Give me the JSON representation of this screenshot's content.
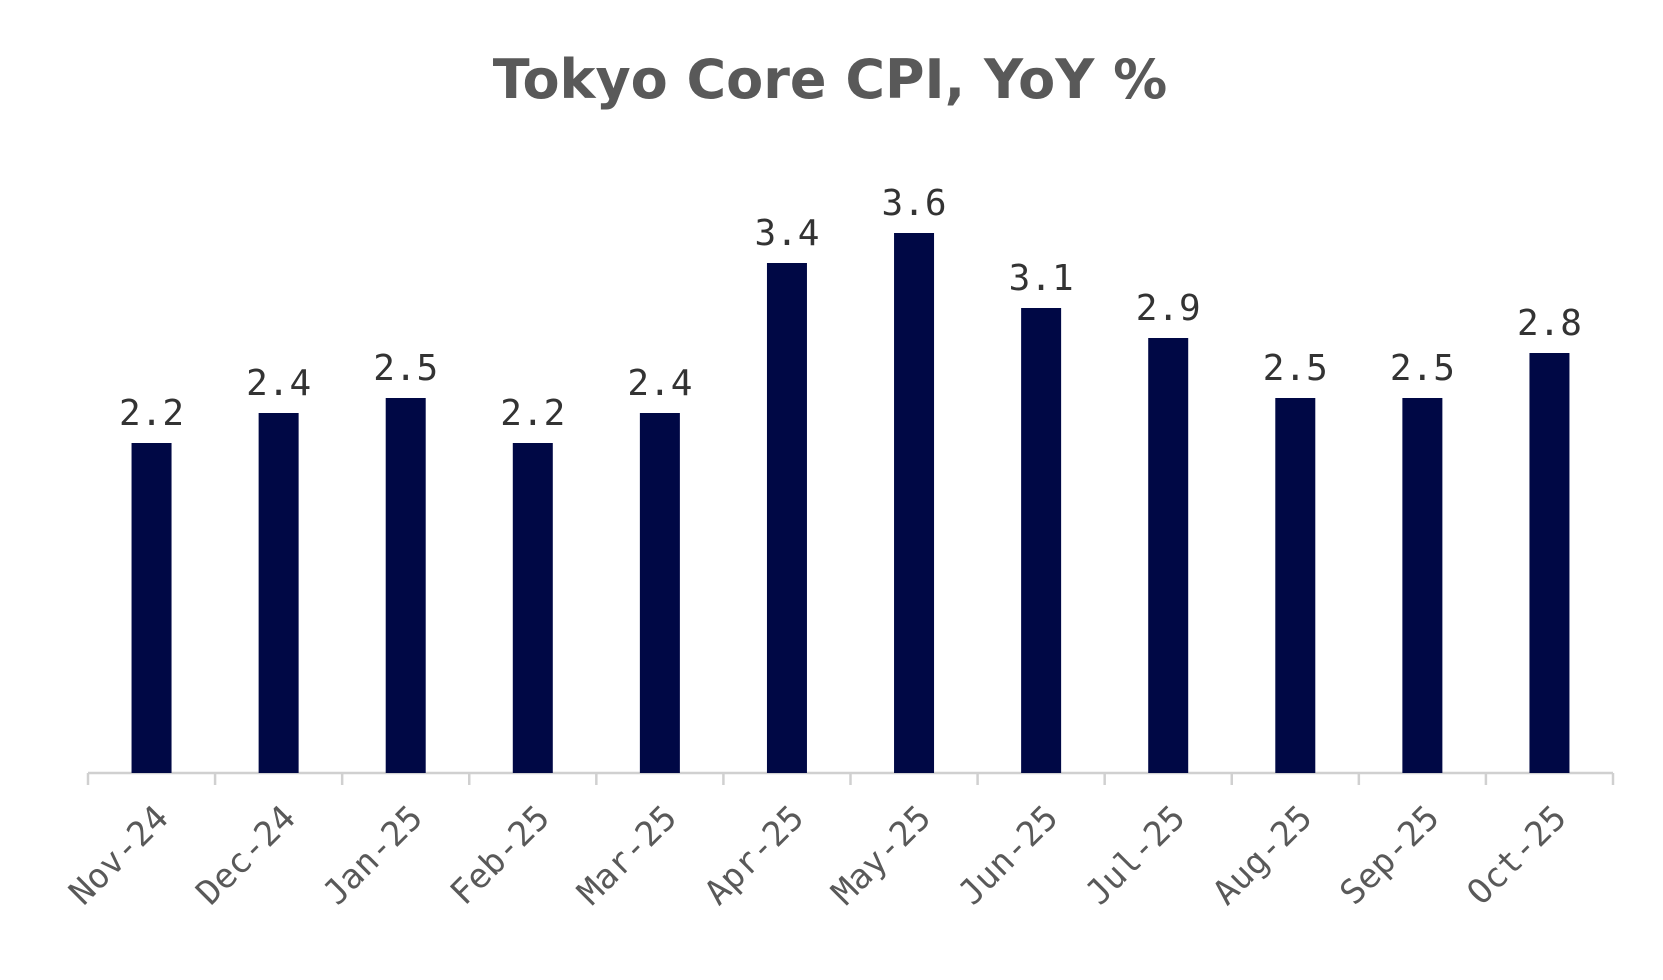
{
  "chart_data": {
    "type": "bar",
    "title": "Tokyo Core CPI, YoY %",
    "categories": [
      "Nov-24",
      "Dec-24",
      "Jan-25",
      "Feb-25",
      "Mar-25",
      "Apr-25",
      "May-25",
      "Jun-25",
      "Jul-25",
      "Aug-25",
      "Sep-25",
      "Oct-25"
    ],
    "values": [
      2.2,
      2.4,
      2.5,
      2.2,
      2.4,
      3.4,
      3.6,
      3.1,
      2.9,
      2.5,
      2.5,
      2.8
    ],
    "color": "#000845"
  }
}
